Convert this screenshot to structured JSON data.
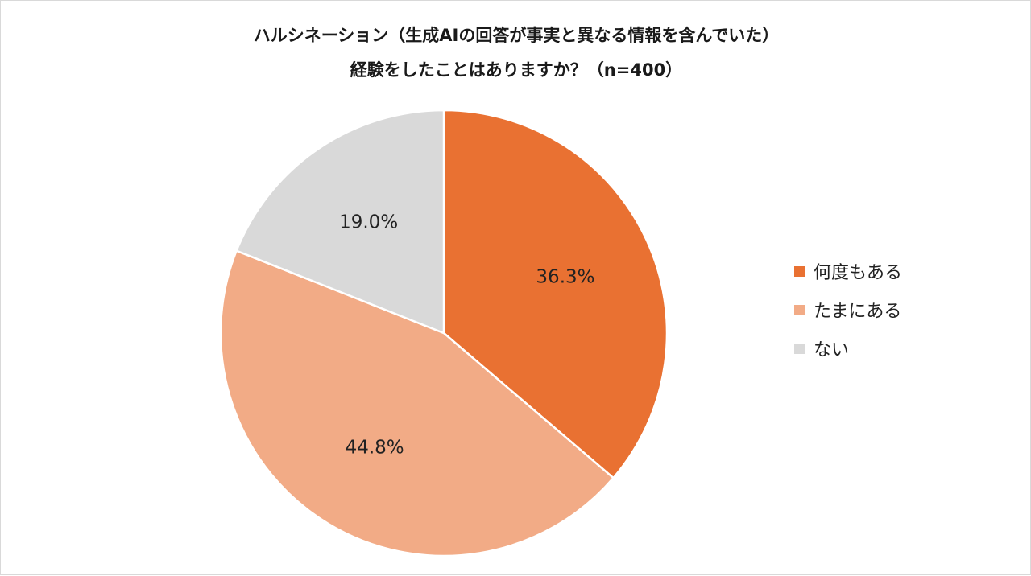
{
  "chart_data": {
    "type": "pie",
    "title_lines": [
      "ハルシネーション（生成AIの回答が事実と異なる情報を含んでいた）",
      "経験をしたことはありますか？（n=400）"
    ],
    "categories": [
      "何度もある",
      "たまにある",
      "ない"
    ],
    "values": [
      36.3,
      44.8,
      19.0
    ],
    "labels": [
      "36.3%",
      "44.8%",
      "19.0%"
    ],
    "colors": [
      "#E97132",
      "#F2AB86",
      "#D9D9D9"
    ],
    "start_angle_deg": 0,
    "direction": "clockwise",
    "legend": "right"
  }
}
